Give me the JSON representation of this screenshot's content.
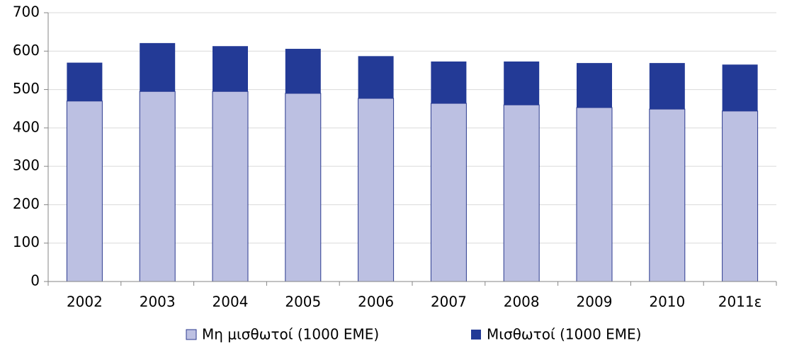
{
  "chart_data": {
    "type": "stacked_bar",
    "categories": [
      "2002",
      "2003",
      "2004",
      "2005",
      "2006",
      "2007",
      "2008",
      "2009",
      "2010",
      "2011ε"
    ],
    "series": [
      {
        "name": "Μη μισθωτοί (1000 ΕΜΕ)",
        "color": "#bcc0e2",
        "values": [
          470,
          495,
          495,
          490,
          477,
          464,
          460,
          453,
          449,
          444
        ]
      },
      {
        "name": "Μισθωτοί (1000 ΕΜΕ)",
        "color": "#233a96",
        "values": [
          100,
          126,
          118,
          116,
          110,
          109,
          113,
          116,
          120,
          121
        ]
      }
    ],
    "ylim": [
      0,
      700
    ],
    "yticks": [
      0,
      100,
      200,
      300,
      400,
      500,
      600,
      700
    ],
    "grid": true,
    "legend": "bottom"
  }
}
